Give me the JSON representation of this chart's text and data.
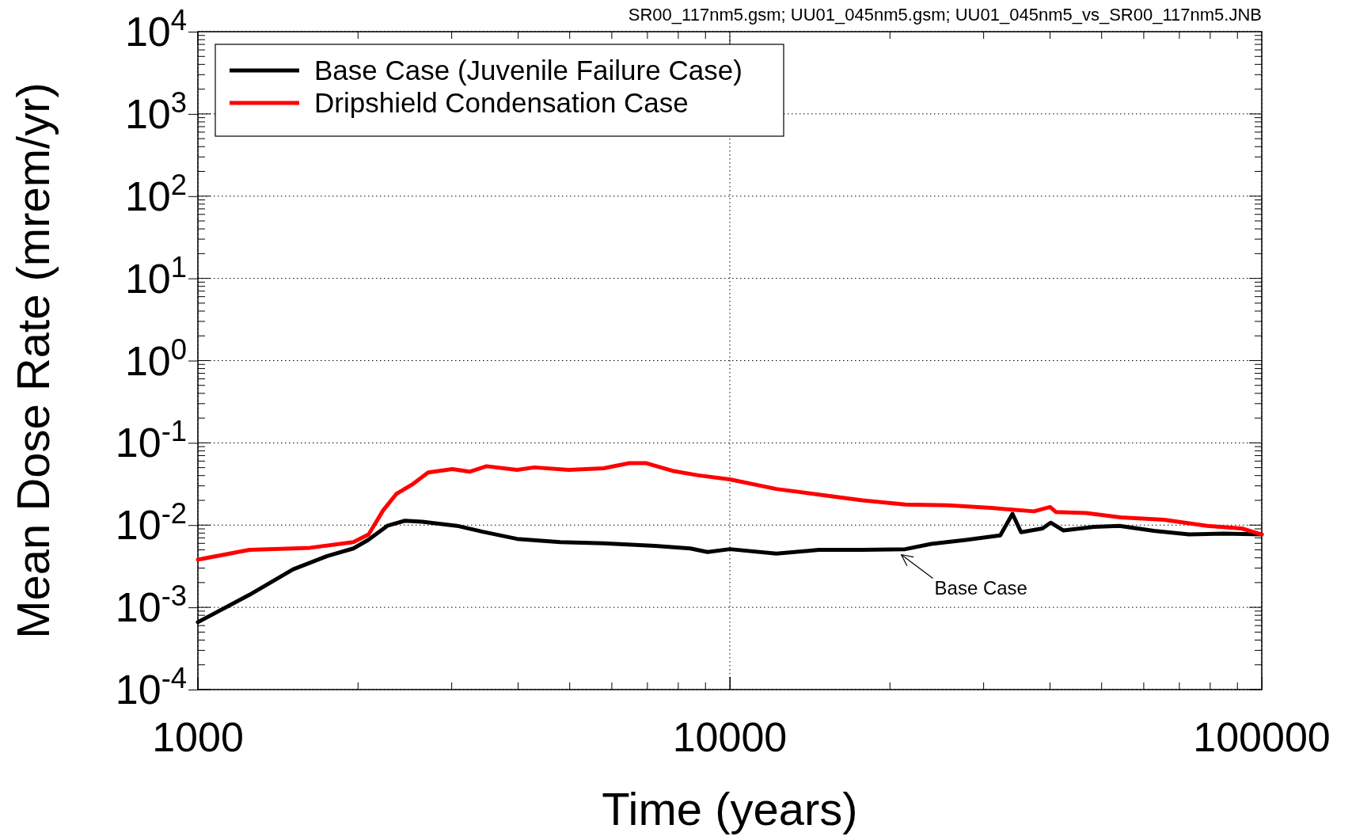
{
  "chart_data": {
    "type": "line",
    "title": "SR00_117nm5.gsm; UU01_045nm5.gsm; UU01_045nm5_vs_SR00_117nm5.JNB",
    "xlabel": "Time (years)",
    "ylabel": "Mean Dose Rate (mrem/yr)",
    "log": "xy",
    "grid": true,
    "legend": "top left",
    "line_style": "solid",
    "marker": "none",
    "xlim": [
      1000,
      100000
    ],
    "xticks": [
      1000,
      10000,
      100000
    ],
    "ylim": [
      0.0001,
      10000
    ],
    "yticks": [
      {
        "value": 0.0001,
        "label": "10$^{-4}$"
      },
      {
        "value": 0.001,
        "label": "10$^{-3}$"
      },
      {
        "value": 0.01,
        "label": "10$^{-2}$"
      },
      {
        "value": 0.1,
        "label": "10$^{-1}$"
      },
      {
        "value": 1,
        "label": "10$^{0}$"
      },
      {
        "value": 10,
        "label": "10$^{1}$"
      },
      {
        "value": 100,
        "label": "10$^{2}$"
      },
      {
        "value": 1000,
        "label": "10$^{3}$"
      },
      {
        "value": 10000,
        "label": "10$^{4}$"
      }
    ],
    "annotations": [
      {
        "text": "Base Case",
        "x": 21000,
        "y": 0.005
      }
    ],
    "series": [
      {
        "name": "Base Case (Juvenile Failure Case)",
        "color": "#000000",
        "x": [
          1000,
          1250,
          1510,
          1750,
          1960,
          2090,
          2270,
          2450,
          2640,
          3070,
          3430,
          3980,
          4800,
          5790,
          7240,
          8430,
          9080,
          10000,
          12230,
          14700,
          17760,
          21370,
          23910,
          27770,
          32240,
          33990,
          35280,
          38700,
          40100,
          42400,
          48300,
          54000,
          62700,
          73000,
          84800,
          100000
        ],
        "values": [
          0.00066,
          0.00142,
          0.0029,
          0.0042,
          0.0052,
          0.0066,
          0.0098,
          0.0113,
          0.011,
          0.0098,
          0.0083,
          0.0068,
          0.0062,
          0.006,
          0.0056,
          0.0052,
          0.0047,
          0.0051,
          0.0045,
          0.005,
          0.005,
          0.0051,
          0.0059,
          0.0066,
          0.0075,
          0.0137,
          0.0082,
          0.0091,
          0.0107,
          0.0086,
          0.0095,
          0.0098,
          0.0085,
          0.0077,
          0.0079,
          0.0077
        ]
      },
      {
        "name": "Dripshield Condensation Case",
        "color": "#ff0000",
        "x": [
          1000,
          1250,
          1510,
          1625,
          1960,
          2094,
          2230,
          2360,
          2540,
          2710,
          3010,
          3240,
          3490,
          3980,
          4290,
          4980,
          5790,
          6470,
          6970,
          7800,
          8720,
          10000,
          12230,
          15290,
          17760,
          21370,
          25740,
          31000,
          33990,
          37300,
          40000,
          41050,
          46750,
          54300,
          65500,
          79000,
          91700,
          100000
        ],
        "values": [
          0.0038,
          0.005,
          0.0052,
          0.0053,
          0.0062,
          0.0077,
          0.0151,
          0.0239,
          0.0318,
          0.0437,
          0.048,
          0.0446,
          0.052,
          0.0469,
          0.0503,
          0.0469,
          0.049,
          0.0566,
          0.0566,
          0.0457,
          0.0403,
          0.036,
          0.0275,
          0.0227,
          0.02,
          0.0178,
          0.0174,
          0.0162,
          0.0154,
          0.0147,
          0.0166,
          0.0144,
          0.014,
          0.0124,
          0.0116,
          0.0098,
          0.0091,
          0.0077
        ]
      }
    ]
  }
}
